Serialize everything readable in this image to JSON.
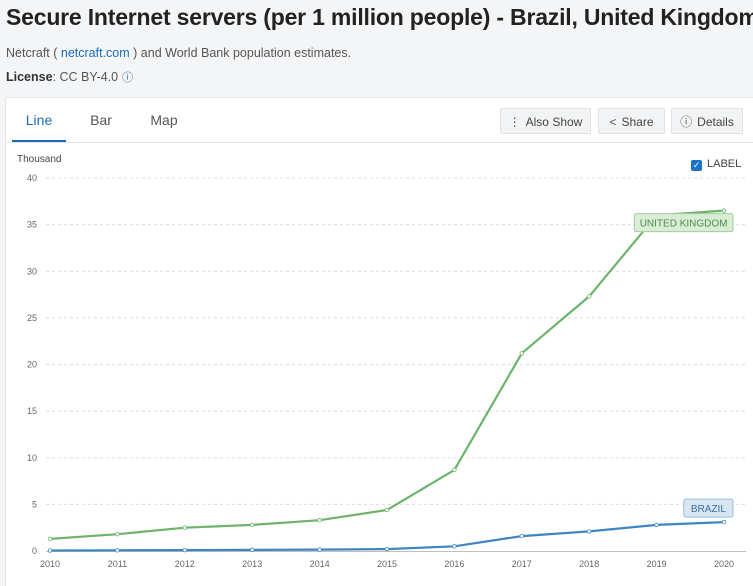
{
  "header": {
    "title": "Secure Internet servers (per 1 million people) - Brazil, United Kingdom",
    "source_prefix": "Netcraft (",
    "source_link": "netcraft.com",
    "source_suffix": ") and World Bank population estimates.",
    "license_label": "License",
    "license_value": ": CC BY-4.0"
  },
  "tabs": [
    {
      "label": "Line"
    },
    {
      "label": "Bar"
    },
    {
      "label": "Map"
    }
  ],
  "toolbar": {
    "also_show": "Also Show",
    "share": "Share",
    "details": "Details"
  },
  "label_toggle": "LABEL",
  "colors": {
    "uk": "#6db36b",
    "brazil": "#3f86c1",
    "accent": "#1a6bb5"
  },
  "chart_data": {
    "type": "line",
    "unit": "Thousand",
    "x": [
      "2010",
      "2011",
      "2012",
      "2013",
      "2014",
      "2015",
      "2016",
      "2017",
      "2018",
      "2019",
      "2020"
    ],
    "ylim": [
      0,
      40
    ],
    "yticks": [
      0,
      5,
      10,
      15,
      20,
      25,
      30,
      35,
      40
    ],
    "series": [
      {
        "name": "UNITED KINGDOM",
        "values": [
          1.3,
          1.8,
          2.5,
          2.8,
          3.3,
          4.4,
          8.7,
          21.2,
          27.3,
          36.0,
          36.5
        ]
      },
      {
        "name": "BRAZIL",
        "values": [
          0.05,
          0.07,
          0.1,
          0.12,
          0.15,
          0.2,
          0.5,
          1.6,
          2.1,
          2.8,
          3.1
        ]
      }
    ]
  }
}
